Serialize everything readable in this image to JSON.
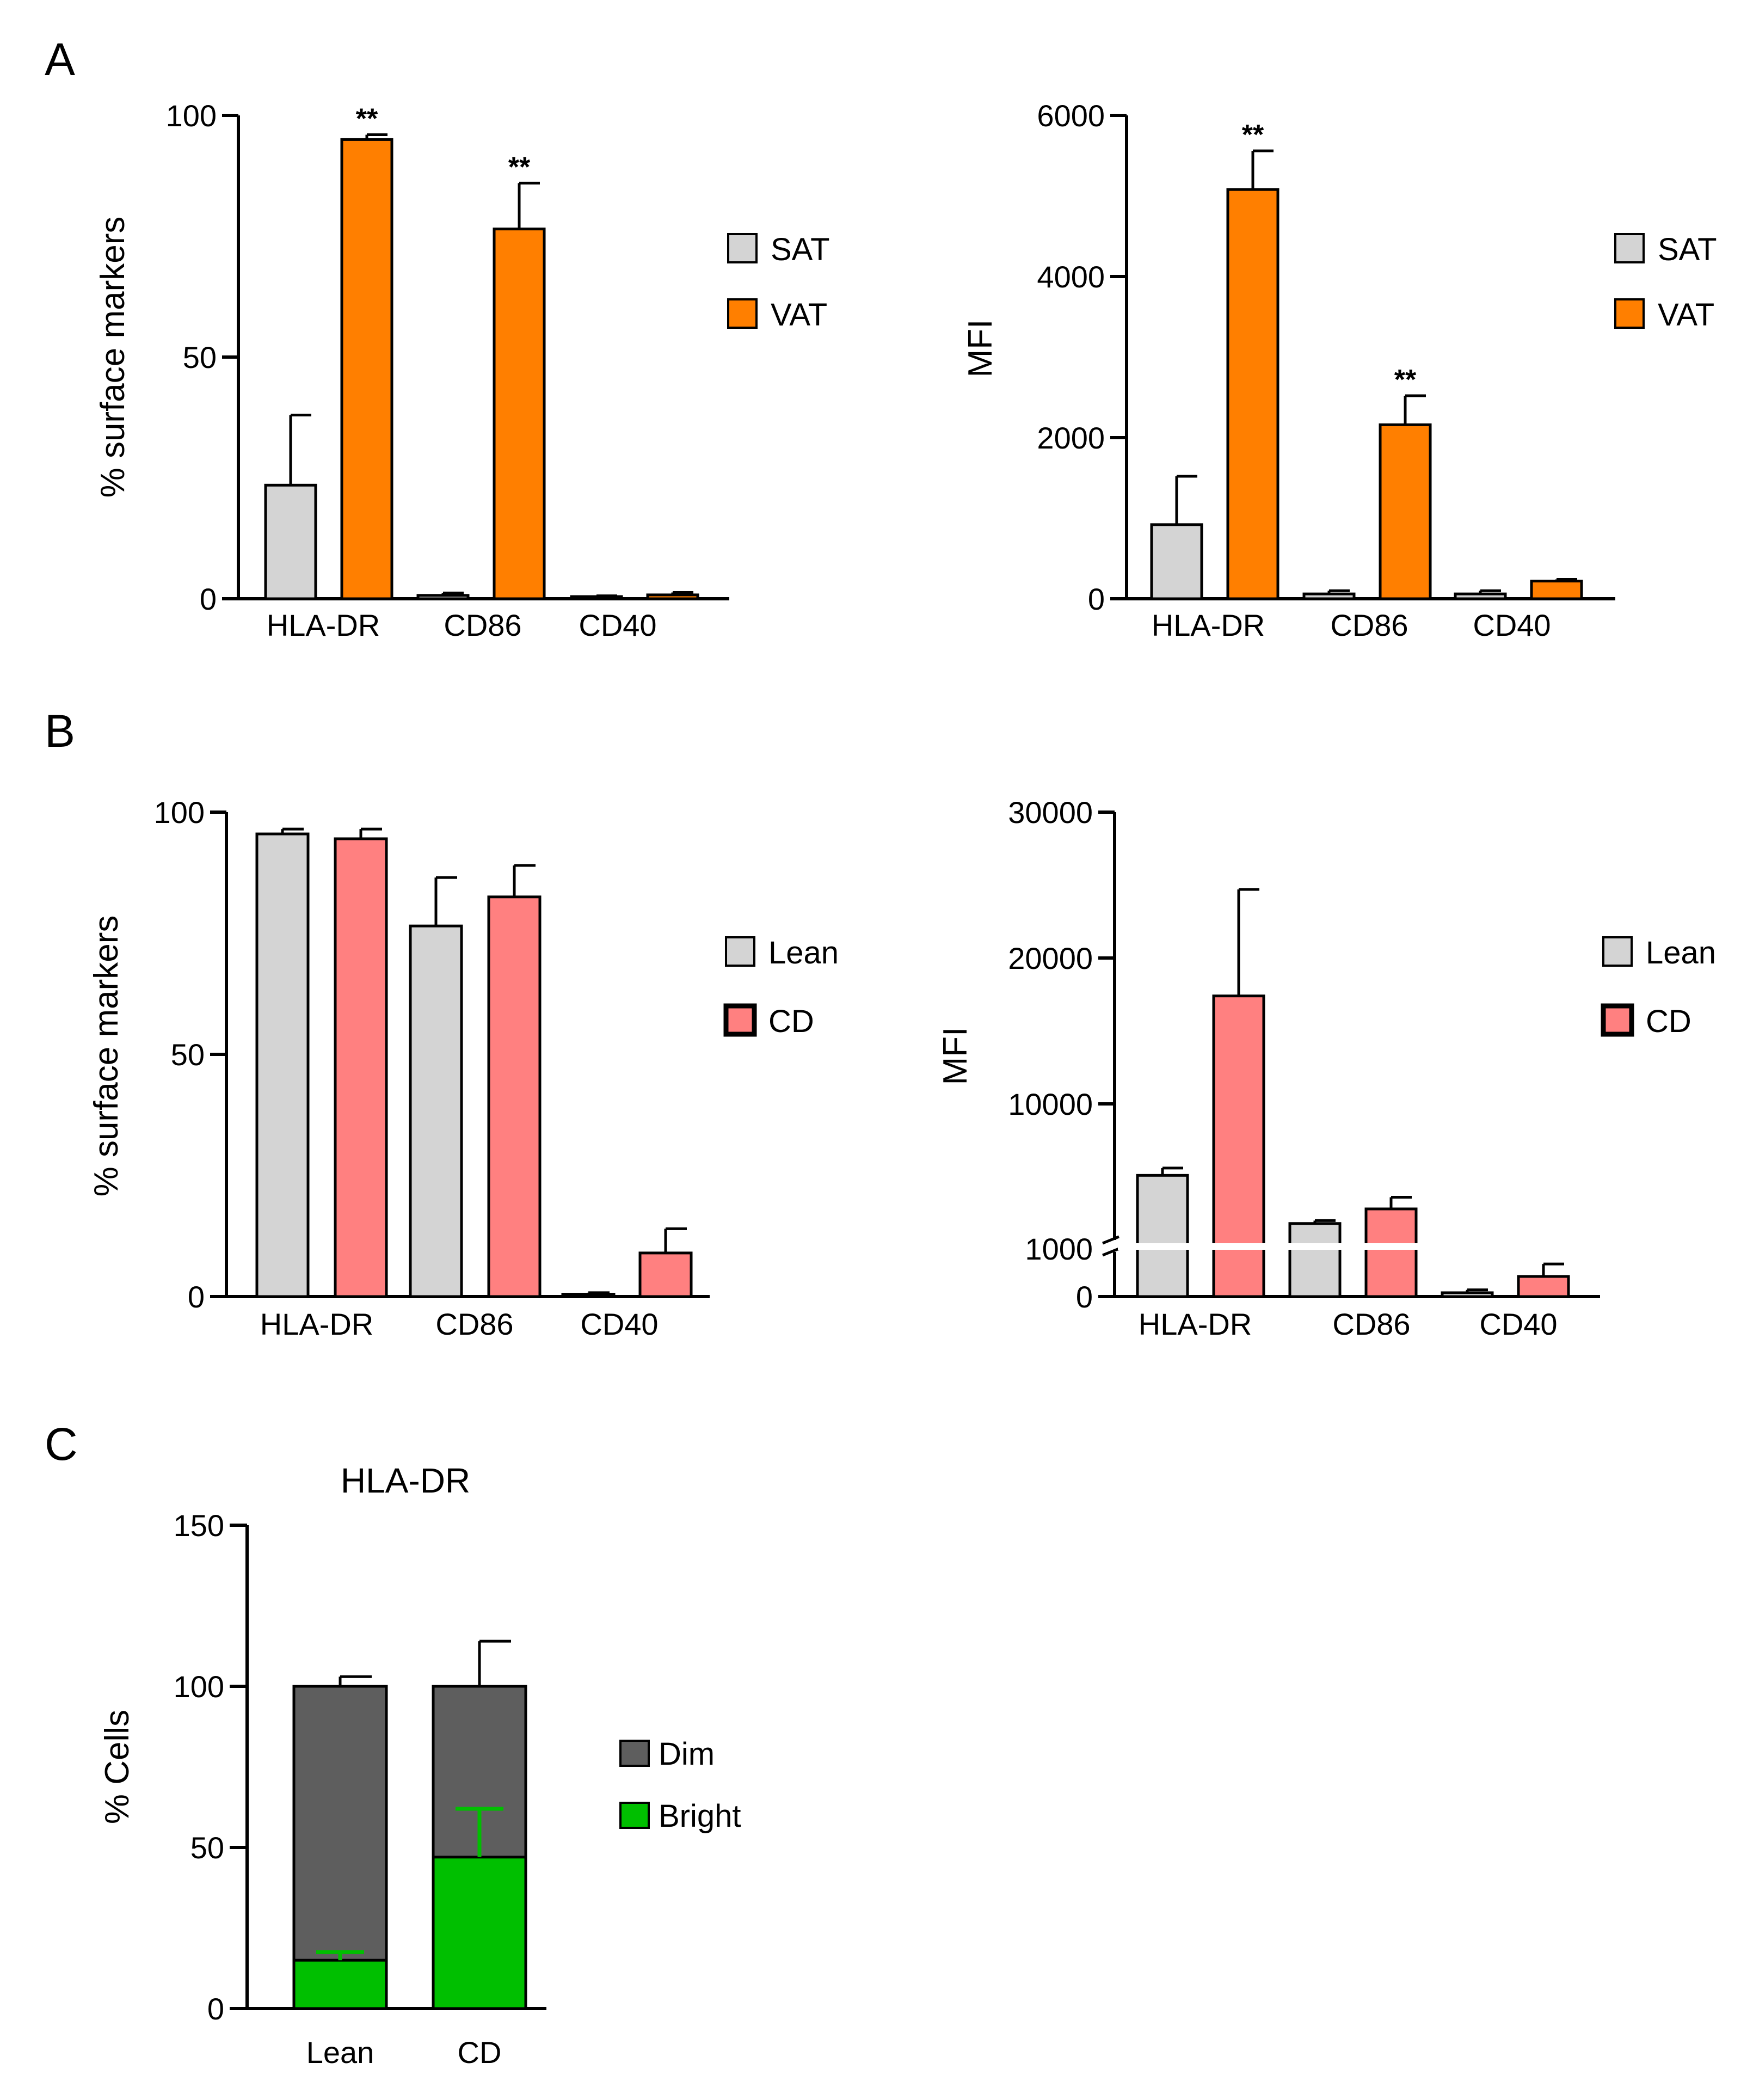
{
  "colors": {
    "sat": "#d4d4d4",
    "vat": "#ff7f00",
    "lean": "#d4d4d4",
    "cd": "#ff8080",
    "dim": "#5e5e5e",
    "bright": "#00bf00",
    "axis": "#000000"
  },
  "panels": {
    "A": "A",
    "B": "B",
    "C": "C"
  },
  "chart_data": [
    {
      "id": "A-left",
      "panel": "A",
      "type": "bar",
      "categories": [
        "HLA-DR",
        "CD86",
        "CD40"
      ],
      "series": [
        {
          "name": "SAT",
          "color": "#d4d4d4",
          "values": [
            23.5,
            0.7,
            0.3
          ],
          "errors": [
            14.5,
            0.5,
            0.3
          ]
        },
        {
          "name": "VAT",
          "color": "#ff7f00",
          "values": [
            95,
            76.5,
            0.8
          ],
          "errors": [
            1,
            9.5,
            0.5
          ]
        }
      ],
      "annotations": [
        {
          "series": 1,
          "category": 0,
          "text": "**"
        },
        {
          "series": 1,
          "category": 1,
          "text": "**"
        }
      ],
      "ylabel": "% surface markers",
      "ylim": [
        0,
        100
      ],
      "yticks": [
        "0",
        "50",
        "100"
      ]
    },
    {
      "id": "A-right",
      "panel": "A",
      "type": "bar",
      "categories": [
        "HLA-DR",
        "CD86",
        "CD40"
      ],
      "series": [
        {
          "name": "SAT",
          "color": "#d4d4d4",
          "values": [
            920,
            60,
            60
          ],
          "errors": [
            600,
            40,
            40
          ]
        },
        {
          "name": "VAT",
          "color": "#ff7f00",
          "values": [
            5080,
            2160,
            220
          ],
          "errors": [
            480,
            360,
            20
          ]
        }
      ],
      "annotations": [
        {
          "series": 1,
          "category": 0,
          "text": "**"
        },
        {
          "series": 1,
          "category": 1,
          "text": "**"
        }
      ],
      "ylabel": "MFI",
      "ylim": [
        0,
        6000
      ],
      "yticks": [
        "0",
        "2000",
        "4000",
        "6000"
      ]
    },
    {
      "id": "B-left",
      "panel": "B",
      "type": "bar",
      "categories": [
        "HLA-DR",
        "CD86",
        "CD40"
      ],
      "series": [
        {
          "name": "Lean",
          "color": "#d4d4d4",
          "values": [
            95.5,
            76.5,
            0.5
          ],
          "errors": [
            1,
            10,
            0.3
          ]
        },
        {
          "name": "CD",
          "color": "#ff8080",
          "values": [
            94.5,
            82.5,
            9
          ],
          "errors": [
            2,
            6.5,
            5
          ]
        }
      ],
      "annotations": [],
      "ylabel": "% surface markers",
      "ylim": [
        0,
        100
      ],
      "yticks": [
        "0",
        "50",
        "100"
      ]
    },
    {
      "id": "B-right",
      "panel": "B",
      "type": "bar",
      "categories": [
        "HLA-DR",
        "CD86",
        "CD40"
      ],
      "series": [
        {
          "name": "Lean",
          "color": "#d4d4d4",
          "values": [
            5100,
            1800,
            80
          ],
          "errors": [
            500,
            200,
            60
          ]
        },
        {
          "name": "CD",
          "color": "#ff8080",
          "values": [
            17400,
            2800,
            420
          ],
          "errors": [
            7300,
            800,
            260
          ]
        }
      ],
      "annotations": [],
      "ylabel": "MFI",
      "ylim": [
        0,
        30000
      ],
      "yticks": [
        "0",
        "1000",
        "10000",
        "20000",
        "30000"
      ],
      "axis_break": [
        1000,
        1500
      ]
    },
    {
      "id": "C",
      "panel": "C",
      "type": "bar",
      "stacked": true,
      "title": "HLA-DR",
      "categories": [
        "Lean",
        "CD"
      ],
      "series": [
        {
          "name": "Dim",
          "color": "#5e5e5e",
          "values": [
            100,
            100
          ],
          "errors": [
            3,
            14
          ]
        },
        {
          "name": "Bright",
          "color": "#00bf00",
          "values": [
            15,
            47
          ],
          "errors": [
            2.5,
            15
          ]
        }
      ],
      "ylabel": "% Cells",
      "ylim": [
        0,
        150
      ],
      "yticks": [
        "0",
        "50",
        "100",
        "150"
      ]
    }
  ]
}
